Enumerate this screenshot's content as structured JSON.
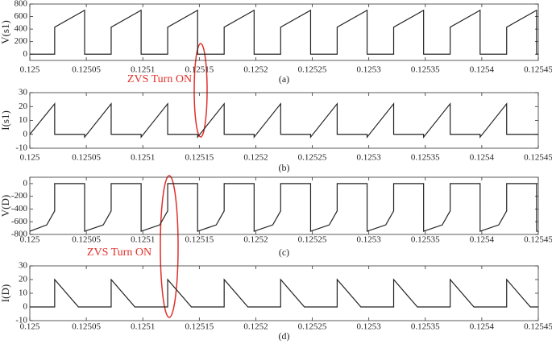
{
  "chart_data": [
    {
      "type": "line",
      "y_label": "V(s1)",
      "caption": "(a)",
      "annotation": "ZVS Turn ON",
      "color": "#222222",
      "xlim": [
        0.125,
        0.12545
      ],
      "xticks": [
        0.125,
        0.12505,
        0.1251,
        0.12515,
        0.1252,
        0.12525,
        0.1253,
        0.12535,
        0.1254,
        0.12545
      ],
      "ylim": [
        -100,
        800
      ],
      "yticks": [
        0,
        200,
        400,
        600,
        800
      ],
      "x": [
        0.125,
        0.125022,
        0.125022,
        0.1250485,
        0.1250485,
        0.125072,
        0.125072,
        0.1250985,
        0.1250985,
        0.125122,
        0.125122,
        0.1251485,
        0.1251485,
        0.125172,
        0.125172,
        0.1251985,
        0.1251985,
        0.125222,
        0.125222,
        0.1252485,
        0.1252485,
        0.125272,
        0.125272,
        0.1252985,
        0.1252985,
        0.125322,
        0.125322,
        0.1253485,
        0.1253485,
        0.125372,
        0.125372,
        0.1253985,
        0.1253985,
        0.125422,
        0.125422,
        0.1254485,
        0.1254485,
        0.12545
      ],
      "values": [
        0,
        0,
        430,
        700,
        0,
        0,
        430,
        700,
        0,
        0,
        430,
        700,
        0,
        0,
        430,
        700,
        0,
        0,
        430,
        700,
        0,
        0,
        430,
        700,
        0,
        0,
        430,
        700,
        0,
        0,
        430,
        700,
        0,
        0,
        430,
        700,
        0,
        0
      ]
    },
    {
      "type": "line",
      "y_label": "I(s1)",
      "caption": "(b)",
      "color": "#222222",
      "xlim": [
        0.125,
        0.12545
      ],
      "xticks": [
        0.125,
        0.12505,
        0.1251,
        0.12515,
        0.1252,
        0.12525,
        0.1253,
        0.12535,
        0.1254,
        0.12545
      ],
      "ylim": [
        -10,
        30
      ],
      "yticks": [
        -10,
        0,
        10,
        20,
        30
      ],
      "x": [
        0.125,
        0.125022,
        0.125022,
        0.1250485,
        0.1250485,
        0.125072,
        0.125072,
        0.1250985,
        0.1250985,
        0.125122,
        0.125122,
        0.1251485,
        0.1251485,
        0.125172,
        0.125172,
        0.1251985,
        0.1251985,
        0.125222,
        0.125222,
        0.1252485,
        0.1252485,
        0.125272,
        0.125272,
        0.1252985,
        0.1252985,
        0.125322,
        0.125322,
        0.1253485,
        0.1253485,
        0.125372,
        0.125372,
        0.1253985,
        0.1253985,
        0.125422,
        0.125422,
        0.1254485,
        0.12545
      ],
      "values": [
        0,
        22,
        0,
        0,
        -2,
        22,
        0,
        0,
        -2,
        22,
        0,
        0,
        -2,
        22,
        0,
        0,
        -2,
        22,
        0,
        0,
        -2,
        22,
        0,
        0,
        -2,
        22,
        0,
        0,
        -2,
        22,
        0,
        0,
        -2,
        22,
        0,
        0,
        0
      ]
    },
    {
      "type": "line",
      "y_label": "V(D)",
      "caption": "(c)",
      "annotation": "ZVS Turn ON",
      "color": "#222222",
      "xlim": [
        0.125,
        0.12545
      ],
      "xticks": [
        0.125,
        0.12505,
        0.1251,
        0.12515,
        0.1252,
        0.12525,
        0.1253,
        0.12535,
        0.1254,
        0.12545
      ],
      "ylim": [
        -800,
        100
      ],
      "yticks": [
        -800,
        -600,
        -400,
        -200,
        0
      ],
      "x": [
        0.125,
        0.125015,
        0.125022,
        0.125022,
        0.1250485,
        0.1250485,
        0.125065,
        0.125072,
        0.125072,
        0.1250985,
        0.1250985,
        0.125115,
        0.125122,
        0.125122,
        0.1251485,
        0.1251485,
        0.125165,
        0.125172,
        0.125172,
        0.1251985,
        0.1251985,
        0.125215,
        0.125222,
        0.125222,
        0.1252485,
        0.1252485,
        0.125265,
        0.125272,
        0.125272,
        0.1252985,
        0.1252985,
        0.125315,
        0.125322,
        0.125322,
        0.1253485,
        0.1253485,
        0.125365,
        0.125372,
        0.125372,
        0.1253985,
        0.1253985,
        0.125415,
        0.125422,
        0.125422,
        0.1254485,
        0.1254485,
        0.12545
      ],
      "values": [
        -750,
        -650,
        -430,
        0,
        0,
        -750,
        -650,
        -430,
        0,
        0,
        -750,
        -650,
        -430,
        0,
        0,
        -750,
        -650,
        -430,
        0,
        0,
        -750,
        -650,
        -430,
        0,
        0,
        -750,
        -650,
        -430,
        0,
        0,
        -750,
        -650,
        -430,
        0,
        0,
        -750,
        -650,
        -430,
        0,
        0,
        -750,
        -650,
        -430,
        0,
        0,
        -750,
        -750
      ]
    },
    {
      "type": "line",
      "y_label": "I(D)",
      "caption": "(d)",
      "color": "#222222",
      "xlim": [
        0.125,
        0.12545
      ],
      "xticks": [
        0.125,
        0.12505,
        0.1251,
        0.12515,
        0.1252,
        0.12525,
        0.1253,
        0.12535,
        0.1254,
        0.12545
      ],
      "ylim": [
        -10,
        30
      ],
      "yticks": [
        -10,
        0,
        10,
        20,
        30
      ],
      "x": [
        0.125,
        0.125022,
        0.125022,
        0.125043,
        0.125072,
        0.125072,
        0.125093,
        0.125122,
        0.125122,
        0.125143,
        0.125172,
        0.125172,
        0.125193,
        0.125222,
        0.125222,
        0.125243,
        0.125272,
        0.125272,
        0.125293,
        0.125322,
        0.125322,
        0.125343,
        0.125372,
        0.125372,
        0.125393,
        0.125422,
        0.125422,
        0.125443,
        0.12545
      ],
      "values": [
        0,
        0,
        20,
        0,
        0,
        20,
        0,
        0,
        20,
        0,
        0,
        20,
        0,
        0,
        20,
        0,
        0,
        20,
        0,
        0,
        20,
        0,
        0,
        20,
        0,
        0,
        20,
        0,
        0
      ]
    }
  ]
}
